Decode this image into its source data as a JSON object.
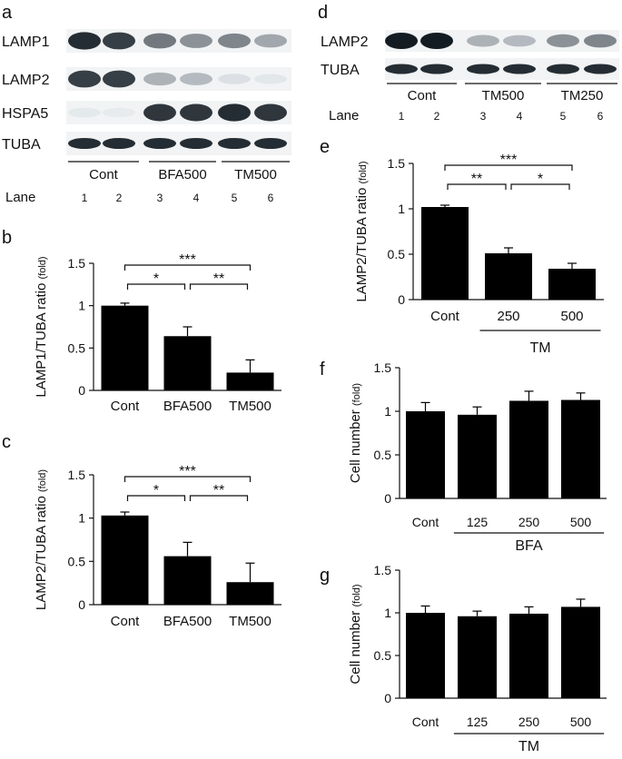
{
  "panels": {
    "a": {
      "letter": "a",
      "rows": [
        "LAMP1",
        "LAMP2",
        "HSPA5",
        "TUBA"
      ],
      "groups": [
        "Cont",
        "BFA500",
        "TM500"
      ],
      "lane_label": "Lane",
      "lanes": [
        "1",
        "2",
        "3",
        "4",
        "5",
        "6"
      ],
      "band_intensity": {
        "LAMP1": [
          0.95,
          0.9,
          0.7,
          0.6,
          0.65,
          0.5
        ],
        "LAMP2": [
          0.9,
          0.9,
          0.45,
          0.4,
          0.15,
          0.1
        ],
        "HSPA5": [
          0.08,
          0.05,
          0.92,
          0.92,
          0.95,
          0.92
        ],
        "TUBA": [
          0.95,
          0.95,
          0.95,
          0.95,
          0.95,
          0.95
        ]
      }
    },
    "d": {
      "letter": "d",
      "rows": [
        "LAMP2",
        "TUBA"
      ],
      "groups": [
        "Cont",
        "TM500",
        "TM250"
      ],
      "lane_label": "Lane",
      "lanes": [
        "1",
        "2",
        "3",
        "4",
        "5",
        "6"
      ],
      "band_intensity": {
        "LAMP2": [
          1.0,
          1.0,
          0.45,
          0.4,
          0.6,
          0.65
        ],
        "TUBA": [
          0.95,
          0.95,
          0.95,
          0.95,
          0.95,
          0.95
        ]
      }
    }
  },
  "chart_data": [
    {
      "id": "b",
      "letter": "b",
      "type": "bar",
      "categories": [
        "Cont",
        "BFA500",
        "TM500"
      ],
      "values": [
        1.0,
        0.64,
        0.21
      ],
      "errors": [
        0.03,
        0.11,
        0.15
      ],
      "ylabel": "LAMP1/TUBA ratio",
      "ylabel_unit": "(fold)",
      "ylim": [
        0,
        1.5
      ],
      "yticks": [
        "0",
        "0.5",
        "1",
        "1.5"
      ],
      "group_label": "",
      "significance": [
        {
          "from": 0,
          "to": 1,
          "label": "*"
        },
        {
          "from": 1,
          "to": 2,
          "label": "**"
        },
        {
          "from": 0,
          "to": 2,
          "label": "***"
        }
      ]
    },
    {
      "id": "c",
      "letter": "c",
      "type": "bar",
      "categories": [
        "Cont",
        "BFA500",
        "TM500"
      ],
      "values": [
        1.03,
        0.56,
        0.26
      ],
      "errors": [
        0.04,
        0.16,
        0.22
      ],
      "ylabel": "LAMP2/TUBA ratio",
      "ylabel_unit": "(fold)",
      "ylim": [
        0,
        1.5
      ],
      "yticks": [
        "0",
        "0.5",
        "1",
        "1.5"
      ],
      "group_label": "",
      "significance": [
        {
          "from": 0,
          "to": 1,
          "label": "*"
        },
        {
          "from": 1,
          "to": 2,
          "label": "**"
        },
        {
          "from": 0,
          "to": 2,
          "label": "***"
        }
      ]
    },
    {
      "id": "e",
      "letter": "e",
      "type": "bar",
      "categories": [
        "Cont",
        "250",
        "500"
      ],
      "values": [
        1.02,
        0.51,
        0.34
      ],
      "errors": [
        0.02,
        0.06,
        0.06
      ],
      "ylabel": "LAMP2/TUBA ratio",
      "ylabel_unit": "(fold)",
      "ylim": [
        0,
        1.5
      ],
      "yticks": [
        "0",
        "0.5",
        "1",
        "1.5"
      ],
      "group_label": "TM",
      "significance": [
        {
          "from": 0,
          "to": 1,
          "label": "**"
        },
        {
          "from": 1,
          "to": 2,
          "label": "*"
        },
        {
          "from": 0,
          "to": 2,
          "label": "***"
        }
      ]
    },
    {
      "id": "f",
      "letter": "f",
      "type": "bar",
      "categories": [
        "Cont",
        "125",
        "250",
        "500"
      ],
      "values": [
        1.0,
        0.96,
        1.12,
        1.13
      ],
      "errors": [
        0.1,
        0.09,
        0.11,
        0.08
      ],
      "ylabel": "Cell number",
      "ylabel_unit": "(fold)",
      "ylim": [
        0,
        1.5
      ],
      "yticks": [
        "0",
        "0.5",
        "1",
        "1.5"
      ],
      "group_label": "BFA",
      "significance": []
    },
    {
      "id": "g",
      "letter": "g",
      "type": "bar",
      "categories": [
        "Cont",
        "125",
        "250",
        "500"
      ],
      "values": [
        1.0,
        0.96,
        0.99,
        1.07
      ],
      "errors": [
        0.08,
        0.06,
        0.08,
        0.09
      ],
      "ylabel": "Cell number",
      "ylabel_unit": "(fold)",
      "ylim": [
        0,
        1.5
      ],
      "yticks": [
        "0",
        "0.5",
        "1",
        "1.5"
      ],
      "group_label": "TM",
      "significance": []
    }
  ]
}
